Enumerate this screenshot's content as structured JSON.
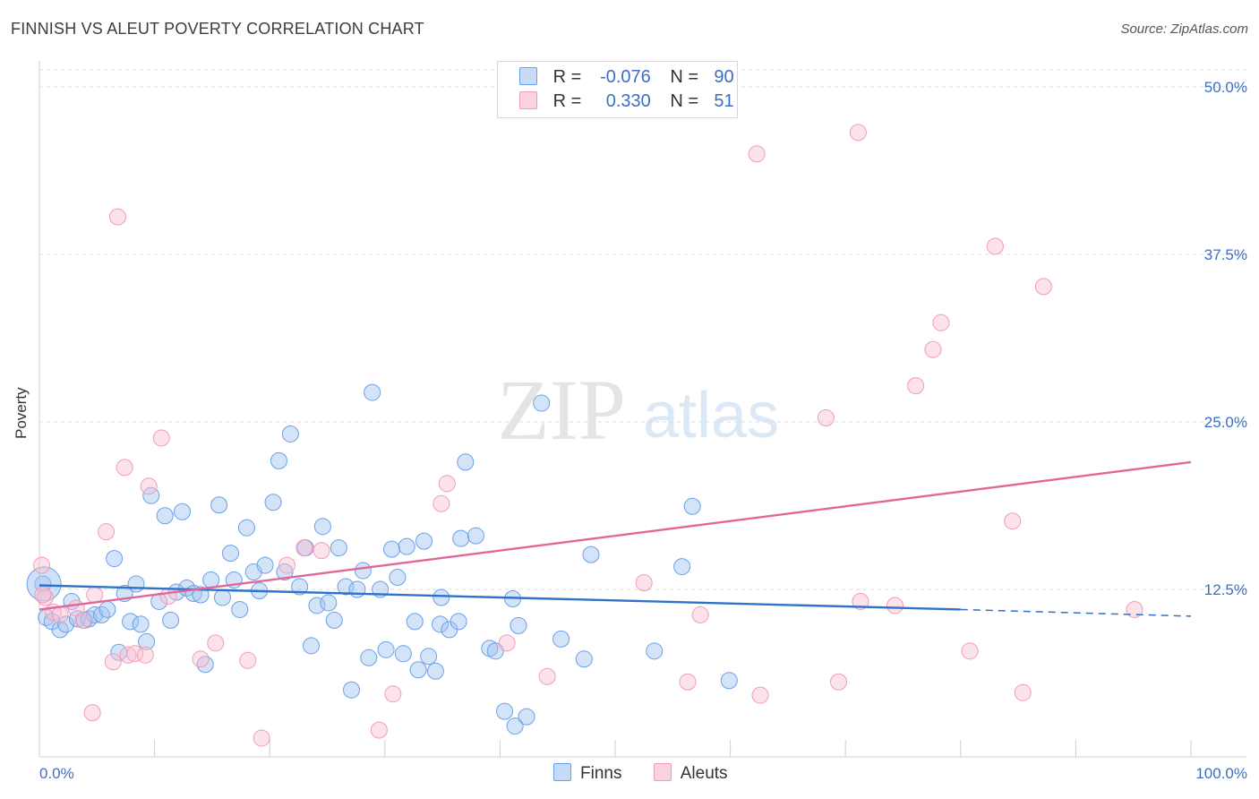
{
  "header": {
    "title": "FINNISH VS ALEUT POVERTY CORRELATION CHART",
    "source": "Source: ZipAtlas.com"
  },
  "legend": {
    "finns": {
      "r_label": "R =",
      "r_value": "-0.076",
      "n_label": "N =",
      "n_value": "90",
      "color": "#6aa0e8"
    },
    "aleuts": {
      "r_label": "R =",
      "r_value": "0.330",
      "n_label": "N =",
      "n_value": "51",
      "color": "#f29bb8"
    }
  },
  "bottom_legend": {
    "finns": "Finns",
    "aleuts": "Aleuts"
  },
  "watermark": {
    "zip": "ZIP",
    "atlas": "atlas"
  },
  "chart_data": {
    "type": "scatter",
    "title": "FINNISH VS ALEUT POVERTY CORRELATION CHART",
    "xlabel": "",
    "ylabel": "Poverty",
    "xlim": [
      0,
      100
    ],
    "ylim": [
      0,
      52
    ],
    "x_tick_labels": [
      "0.0%",
      "100.0%"
    ],
    "y_ticks": [
      12.5,
      25.0,
      37.5,
      50.0
    ],
    "y_tick_labels": [
      "12.5%",
      "25.0%",
      "37.5%",
      "50.0%"
    ],
    "grid": true,
    "series": [
      {
        "name": "Finns",
        "color": "#6aa0e8",
        "line_color": "#2f72c9",
        "r": -0.076,
        "n": 90,
        "trend": {
          "x0": 0,
          "y0": 12.8,
          "x1": 80,
          "y1": 11.0,
          "dash_to_x": 100,
          "dash_to_y": 10.5
        },
        "points": [
          [
            0.3,
            12.9
          ],
          [
            0.6,
            10.4
          ],
          [
            1.1,
            10.1
          ],
          [
            1.8,
            9.5
          ],
          [
            2.3,
            9.9
          ],
          [
            2.8,
            11.6
          ],
          [
            3.3,
            10.3
          ],
          [
            3.9,
            10.2
          ],
          [
            4.3,
            10.3
          ],
          [
            4.8,
            10.6
          ],
          [
            5.4,
            10.6
          ],
          [
            5.9,
            11.0
          ],
          [
            6.5,
            14.8
          ],
          [
            6.9,
            7.8
          ],
          [
            7.4,
            12.2
          ],
          [
            7.9,
            10.1
          ],
          [
            8.4,
            12.9
          ],
          [
            8.8,
            9.9
          ],
          [
            9.3,
            8.6
          ],
          [
            9.7,
            19.5
          ],
          [
            10.4,
            11.6
          ],
          [
            10.9,
            18.0
          ],
          [
            11.4,
            10.2
          ],
          [
            11.9,
            12.3
          ],
          [
            12.4,
            18.3
          ],
          [
            12.8,
            12.6
          ],
          [
            13.4,
            12.2
          ],
          [
            14.0,
            12.1
          ],
          [
            14.4,
            6.9
          ],
          [
            14.9,
            13.2
          ],
          [
            15.6,
            18.8
          ],
          [
            15.9,
            11.9
          ],
          [
            16.6,
            15.2
          ],
          [
            16.9,
            13.2
          ],
          [
            17.4,
            11.0
          ],
          [
            18.0,
            17.1
          ],
          [
            18.6,
            13.8
          ],
          [
            19.1,
            12.4
          ],
          [
            19.6,
            14.3
          ],
          [
            20.3,
            19.0
          ],
          [
            20.8,
            22.1
          ],
          [
            21.3,
            13.8
          ],
          [
            21.8,
            24.1
          ],
          [
            22.6,
            12.7
          ],
          [
            23.1,
            15.6
          ],
          [
            23.6,
            8.3
          ],
          [
            24.1,
            11.3
          ],
          [
            24.6,
            17.2
          ],
          [
            25.1,
            11.5
          ],
          [
            25.6,
            10.2
          ],
          [
            26.0,
            15.6
          ],
          [
            26.6,
            12.7
          ],
          [
            27.1,
            5.0
          ],
          [
            27.6,
            12.5
          ],
          [
            28.1,
            13.9
          ],
          [
            28.6,
            7.4
          ],
          [
            28.9,
            27.2
          ],
          [
            29.6,
            12.5
          ],
          [
            30.1,
            8.0
          ],
          [
            30.6,
            15.5
          ],
          [
            31.1,
            13.4
          ],
          [
            31.6,
            7.7
          ],
          [
            31.9,
            15.7
          ],
          [
            32.6,
            10.1
          ],
          [
            32.9,
            6.5
          ],
          [
            33.4,
            16.1
          ],
          [
            33.8,
            7.5
          ],
          [
            34.4,
            6.4
          ],
          [
            34.8,
            9.9
          ],
          [
            34.9,
            11.9
          ],
          [
            35.6,
            9.5
          ],
          [
            36.4,
            10.1
          ],
          [
            37.0,
            22.0
          ],
          [
            36.6,
            16.3
          ],
          [
            37.9,
            16.5
          ],
          [
            39.1,
            8.1
          ],
          [
            39.6,
            7.9
          ],
          [
            40.4,
            3.4
          ],
          [
            41.1,
            11.8
          ],
          [
            41.3,
            2.3
          ],
          [
            41.6,
            9.8
          ],
          [
            42.3,
            3.0
          ],
          [
            45.3,
            8.8
          ],
          [
            47.3,
            7.3
          ],
          [
            47.9,
            15.1
          ],
          [
            53.4,
            7.9
          ],
          [
            55.8,
            14.2
          ],
          [
            56.7,
            18.7
          ],
          [
            59.9,
            5.7
          ],
          [
            43.6,
            26.4
          ]
        ],
        "big_point": [
          0.4,
          12.9
        ]
      },
      {
        "name": "Aleuts",
        "color": "#f29bb8",
        "line_color": "#e2669a",
        "r": 0.33,
        "n": 51,
        "trend": {
          "x0": 0,
          "y0": 11.0,
          "x1": 100,
          "y1": 22.0
        },
        "points": [
          [
            0.2,
            14.3
          ],
          [
            0.5,
            11.9
          ],
          [
            1.2,
            10.8
          ],
          [
            1.8,
            10.6
          ],
          [
            3.2,
            11.1
          ],
          [
            3.8,
            10.2
          ],
          [
            4.6,
            3.3
          ],
          [
            4.8,
            12.1
          ],
          [
            5.8,
            16.8
          ],
          [
            6.4,
            7.1
          ],
          [
            6.8,
            40.3
          ],
          [
            7.4,
            21.6
          ],
          [
            7.7,
            7.6
          ],
          [
            8.3,
            7.7
          ],
          [
            9.2,
            7.6
          ],
          [
            9.5,
            20.2
          ],
          [
            10.6,
            23.8
          ],
          [
            11.2,
            12.0
          ],
          [
            14.0,
            7.3
          ],
          [
            15.3,
            8.5
          ],
          [
            18.1,
            7.2
          ],
          [
            19.3,
            1.4
          ],
          [
            21.5,
            14.3
          ],
          [
            23.0,
            15.6
          ],
          [
            24.5,
            15.4
          ],
          [
            29.5,
            2.0
          ],
          [
            30.7,
            4.7
          ],
          [
            34.9,
            18.9
          ],
          [
            35.4,
            20.4
          ],
          [
            40.6,
            8.5
          ],
          [
            44.1,
            6.0
          ],
          [
            52.5,
            13.0
          ],
          [
            56.3,
            5.6
          ],
          [
            57.4,
            10.6
          ],
          [
            62.3,
            45.0
          ],
          [
            62.6,
            4.6
          ],
          [
            68.3,
            25.3
          ],
          [
            69.4,
            5.6
          ],
          [
            71.1,
            46.6
          ],
          [
            71.3,
            11.6
          ],
          [
            74.3,
            11.3
          ],
          [
            76.1,
            27.7
          ],
          [
            77.6,
            30.4
          ],
          [
            78.3,
            32.4
          ],
          [
            80.8,
            7.9
          ],
          [
            83.0,
            38.1
          ],
          [
            84.5,
            17.6
          ],
          [
            85.4,
            4.8
          ],
          [
            87.2,
            35.1
          ],
          [
            95.1,
            11.0
          ],
          [
            0.3,
            12.1
          ]
        ]
      }
    ]
  }
}
